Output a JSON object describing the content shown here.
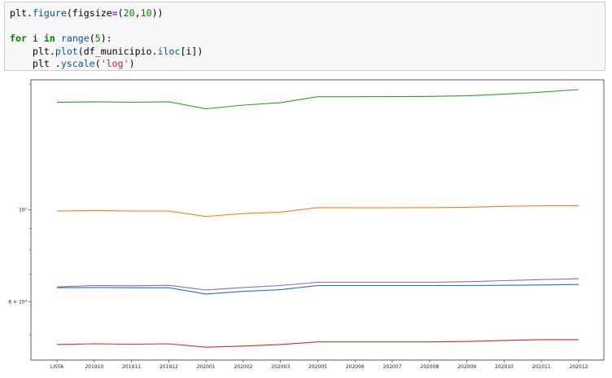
{
  "notebook": {
    "code_lines": [
      [
        {
          "t": "plt",
          "c": ""
        },
        {
          "t": ".",
          "c": ""
        },
        {
          "t": "figure",
          "c": "fn"
        },
        {
          "t": "(figsize",
          "c": ""
        },
        {
          "t": "=",
          "c": "op"
        },
        {
          "t": "(",
          "c": ""
        },
        {
          "t": "20",
          "c": "num"
        },
        {
          "t": ",",
          "c": ""
        },
        {
          "t": "10",
          "c": "num"
        },
        {
          "t": "))",
          "c": ""
        }
      ],
      [],
      [
        {
          "t": "for",
          "c": "kw"
        },
        {
          "t": " i ",
          "c": ""
        },
        {
          "t": "in",
          "c": "kw"
        },
        {
          "t": " ",
          "c": ""
        },
        {
          "t": "range",
          "c": "fn"
        },
        {
          "t": "(",
          "c": ""
        },
        {
          "t": "5",
          "c": "num"
        },
        {
          "t": "):",
          "c": ""
        }
      ],
      [
        {
          "t": "    plt",
          "c": ""
        },
        {
          "t": ".",
          "c": ""
        },
        {
          "t": "plot",
          "c": "fn"
        },
        {
          "t": "(df_municipio",
          "c": ""
        },
        {
          "t": ".",
          "c": ""
        },
        {
          "t": "iloc",
          "c": "fn"
        },
        {
          "t": "[i])",
          "c": ""
        }
      ],
      [
        {
          "t": "    plt .",
          "c": ""
        },
        {
          "t": "yscale",
          "c": "fn"
        },
        {
          "t": "(",
          "c": ""
        },
        {
          "t": "'log'",
          "c": "str"
        },
        {
          "t": ")",
          "c": ""
        }
      ]
    ]
  },
  "chart_data": {
    "type": "line",
    "yscale": "log",
    "ylim": [
      43500,
      205000
    ],
    "categories": [
      "LISTA",
      "201910",
      "201911",
      "201912",
      "202001",
      "202002",
      "202003",
      "202005",
      "202006",
      "202007",
      "202008",
      "202009",
      "202010",
      "202011",
      "202012"
    ],
    "y_ticks": [
      {
        "value": 100000,
        "label": "10⁵"
      },
      {
        "value": 60000,
        "label": "6 × 10⁴"
      }
    ],
    "y_minor_ticks": [
      50000,
      70000,
      80000,
      90000,
      200000
    ],
    "grid": false,
    "legend": "none",
    "series": [
      {
        "color": "#1f77b4",
        "values": [
          64900,
          65000,
          64900,
          64900,
          62700,
          63600,
          64200,
          65700,
          65700,
          65700,
          65700,
          65700,
          65800,
          65900,
          66100
        ]
      },
      {
        "color": "#ff7f0e",
        "values": [
          99200,
          99500,
          99200,
          99200,
          96300,
          97800,
          98600,
          101100,
          101000,
          101000,
          101100,
          101300,
          101800,
          102200,
          102200
        ]
      },
      {
        "color": "#2ca02c",
        "values": [
          181000,
          181600,
          181100,
          181600,
          174600,
          178300,
          180600,
          186700,
          186700,
          186800,
          187100,
          187700,
          189400,
          191500,
          194200
        ]
      },
      {
        "color": "#d62728",
        "values": [
          47400,
          47600,
          47500,
          47600,
          46700,
          47000,
          47400,
          48100,
          48100,
          48100,
          48100,
          48200,
          48500,
          48700,
          48700
        ]
      },
      {
        "color": "#9467bd",
        "values": [
          65200,
          65700,
          65600,
          65800,
          64100,
          65000,
          65700,
          66900,
          66900,
          66900,
          66900,
          67100,
          67500,
          67900,
          68200
        ]
      }
    ]
  }
}
